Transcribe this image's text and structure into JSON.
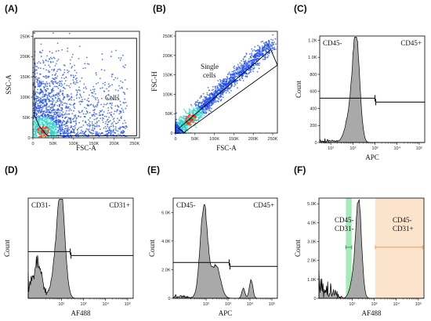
{
  "colors": {
    "histogram_fill": "#a9a9a9",
    "histogram_line": "#000000",
    "density_low": "#1c4cf0",
    "density_mid": "#2ad3c8",
    "density_high": "#ff2a00",
    "gate_green": "#8ee6a8",
    "gate_orange": "#fbe3cc",
    "orange_marker": "#f29b4a"
  },
  "chart_data": [
    {
      "panel": "(A)",
      "type": "scatter",
      "xlabel": "FSC-A",
      "ylabel": "SSC-A",
      "xticks": [
        "0",
        "50K",
        "100K",
        "150K",
        "200K",
        "250K"
      ],
      "yticks": [
        "0",
        "50K",
        "100K",
        "150K",
        "200K",
        "250K"
      ],
      "xlim": [
        0,
        262144
      ],
      "ylim": [
        0,
        262144
      ],
      "gate_label": "Cells",
      "gate": [
        [
          4000,
          245000
        ],
        [
          255000,
          245000
        ],
        [
          255000,
          5000
        ],
        [
          35000,
          5000
        ],
        [
          15000,
          30000
        ],
        [
          4000,
          55000
        ]
      ],
      "density_core": [
        25000,
        15000
      ]
    },
    {
      "panel": "(B)",
      "type": "scatter",
      "xlabel": "FSC-A",
      "ylabel": "FSC-H",
      "xticks": [
        "0",
        "50K",
        "100K",
        "150K",
        "200K",
        "250K"
      ],
      "yticks": [
        "0",
        "50K",
        "100K",
        "150K",
        "200K",
        "250K"
      ],
      "xlim": [
        0,
        262144
      ],
      "ylim": [
        0,
        262144
      ],
      "gate_label": "Single cells",
      "gate": [
        [
          8000,
          12000
        ],
        [
          245000,
          215000
        ],
        [
          262144,
          175000
        ],
        [
          22000,
          2000
        ]
      ],
      "density_core": [
        40000,
        35000
      ]
    },
    {
      "panel": "(C)",
      "type": "histogram",
      "xlabel": "APC",
      "ylabel": "Count",
      "xscale": "log",
      "xticks": [
        "10¹",
        "10²",
        "10³",
        "10⁴",
        "10⁵"
      ],
      "yticks": [
        "0",
        "200",
        "400",
        "600",
        "800",
        "1.0K",
        "1.2K"
      ],
      "ylim": [
        0,
        1250
      ],
      "xlim": [
        0.5,
        5.25
      ],
      "gate_left_label": "CD45-",
      "gate_right_label": "CD45+",
      "gate_y": 520,
      "gate_split": 3.0,
      "gate_range": [
        0.5,
        5.25
      ],
      "peaks": [
        {
          "c": 2.15,
          "s": 0.16,
          "h": 1200
        },
        {
          "c": 1.85,
          "s": 0.2,
          "h": 300
        }
      ],
      "noise": 0.05
    },
    {
      "panel": "(D)",
      "type": "histogram",
      "xlabel": "AF488",
      "ylabel": "Count",
      "xscale": "log",
      "xticks": [
        "10²",
        "10³",
        "10⁴",
        "10⁵"
      ],
      "yticks": [],
      "ylim": [
        0,
        880
      ],
      "xlim": [
        0.5,
        5.25
      ],
      "gate_left_label": "CD31-",
      "gate_right_label": "CD31+",
      "gate_y": 410,
      "gate_split": 2.4,
      "gate_range": [
        0.5,
        5.25
      ],
      "peaks": [
        {
          "c": 2.0,
          "s": 0.17,
          "h": 840
        },
        {
          "c": 1.75,
          "s": 0.18,
          "h": 260
        },
        {
          "c": 0.95,
          "s": 0.15,
          "h": 260
        }
      ],
      "noise": 0.25
    },
    {
      "panel": "(E)",
      "type": "histogram",
      "xlabel": "APC",
      "ylabel": "Count",
      "xscale": "log",
      "xticks": [
        "10²",
        "10³",
        "10⁴",
        "10⁵"
      ],
      "yticks": [
        "0",
        "2.0K",
        "4.0K",
        "6.0K"
      ],
      "ylim": [
        0,
        7000
      ],
      "xlim": [
        0.5,
        5.25
      ],
      "gate_left_label": "CD45-",
      "gate_right_label": "CD45+",
      "gate_y": 2500,
      "gate_split": 3.05,
      "gate_range": [
        0.5,
        5.25
      ],
      "peaks": [
        {
          "c": 1.9,
          "s": 0.17,
          "h": 6500
        },
        {
          "c": 2.45,
          "s": 0.2,
          "h": 2300
        },
        {
          "c": 4.05,
          "s": 0.08,
          "h": 1300
        },
        {
          "c": 3.7,
          "s": 0.07,
          "h": 700
        }
      ],
      "noise": 0.05
    },
    {
      "panel": "(F)",
      "type": "histogram",
      "xlabel": "AF488",
      "ylabel": "Count",
      "xscale": "log",
      "xticks": [
        "10²",
        "10³",
        "10⁴",
        "10⁵"
      ],
      "yticks": [
        "0",
        "1.0K",
        "2.0K",
        "3.0K",
        "4.0K",
        "5.0K"
      ],
      "ylim": [
        0,
        5300
      ],
      "xlim": [
        0.5,
        5.25
      ],
      "label_left": [
        "CD45-",
        "CD31-"
      ],
      "label_right": [
        "CD45-",
        "CD31+"
      ],
      "green_band": [
        1.72,
        1.98
      ],
      "orange_band": [
        3.05,
        5.25
      ],
      "green_marker": [
        1.72,
        1.98,
        2700
      ],
      "orange_marker": [
        3.05,
        5.2,
        2700
      ],
      "peaks": [
        {
          "c": 2.3,
          "s": 0.13,
          "h": 5000
        },
        {
          "c": 2.05,
          "s": 0.15,
          "h": 900
        }
      ],
      "noise": 0.3
    }
  ]
}
